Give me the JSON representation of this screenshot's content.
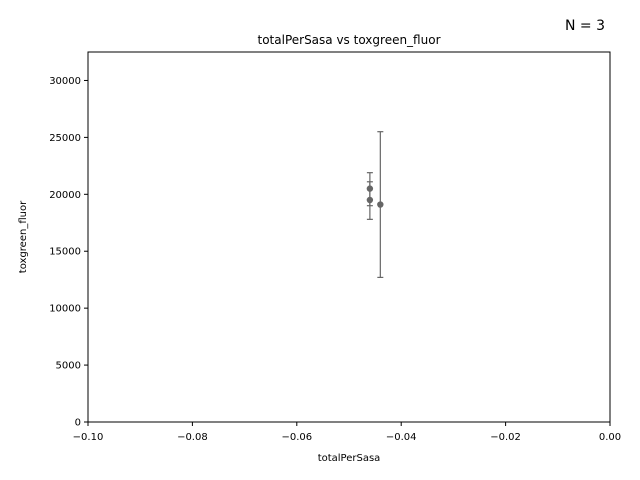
{
  "annotation": "N = 3",
  "chart_data": {
    "type": "scatter",
    "title": "totalPerSasa vs toxgreen_fluor",
    "xlabel": "totalPerSasa",
    "ylabel": "toxgreen_fluor",
    "xlim": [
      -0.1,
      0.0
    ],
    "ylim": [
      0,
      32500
    ],
    "x_ticks": [
      -0.1,
      -0.08,
      -0.06,
      -0.04,
      -0.02,
      0.0
    ],
    "x_tick_labels": [
      "−0.10",
      "−0.08",
      "−0.06",
      "−0.04",
      "−0.02",
      "0.00"
    ],
    "y_ticks": [
      0,
      5000,
      10000,
      15000,
      20000,
      25000,
      30000
    ],
    "y_tick_labels": [
      "0",
      "5000",
      "10000",
      "15000",
      "20000",
      "25000",
      "30000"
    ],
    "grid": false,
    "points": [
      {
        "x": -0.046,
        "y": 20500,
        "err_low": 19000,
        "err_high": 21900
      },
      {
        "x": -0.046,
        "y": 19500,
        "err_low": 17800,
        "err_high": 21100
      },
      {
        "x": -0.044,
        "y": 19100,
        "err_low": 12700,
        "err_high": 25500
      }
    ],
    "marker_color": "#666666"
  }
}
